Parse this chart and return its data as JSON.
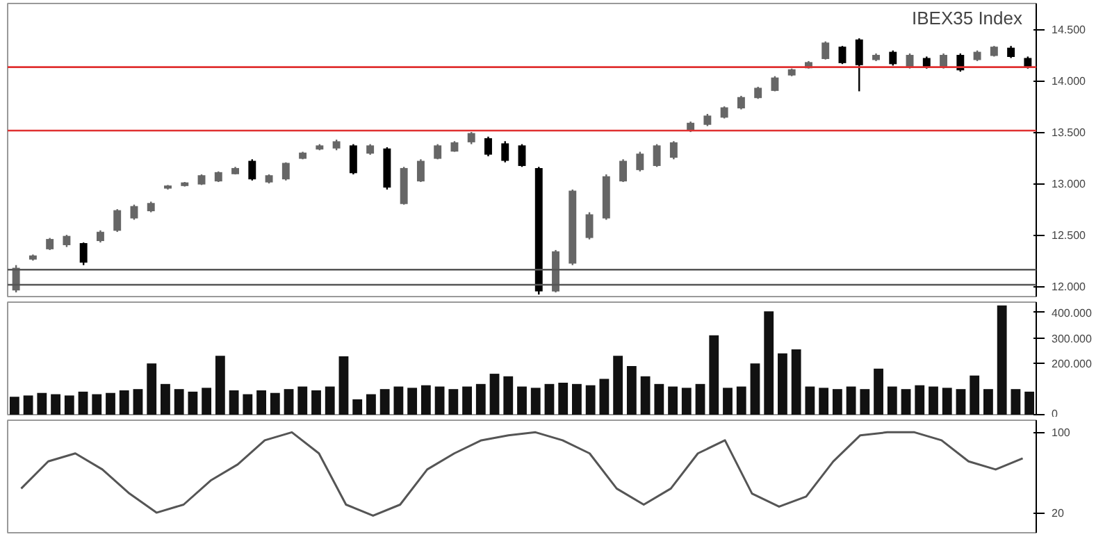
{
  "chart_data": [
    {
      "type": "candlestick",
      "title": "IBEX35 Index",
      "colors": [
        "#666666",
        "#666666",
        "#666666",
        "#666666",
        "#000000",
        "#666666",
        "#666666",
        "#666666",
        "#666666",
        "#666666",
        "#666666",
        "#666666",
        "#666666",
        "#666666",
        "#000000",
        "#666666",
        "#666666",
        "#666666",
        "#666666",
        "#666666",
        "#000000",
        "#666666",
        "#000000",
        "#666666",
        "#666666",
        "#666666",
        "#666666",
        "#666666",
        "#000000",
        "#000000",
        "#000000",
        "#000000",
        "#666666",
        "#666666",
        "#666666",
        "#666666",
        "#666666",
        "#666666",
        "#666666",
        "#666666",
        "#666666",
        "#666666",
        "#666666",
        "#666666",
        "#666666",
        "#666666",
        "#666666",
        "#666666",
        "#666666",
        "#000000",
        "#000000",
        "#666666",
        "#000000",
        "#666666",
        "#000000",
        "#666666",
        "#000000",
        "#666666",
        "#666666",
        "#000000",
        "#000000"
      ],
      "categories": [
        null,
        null,
        null,
        null,
        null,
        null,
        null,
        null,
        null,
        null,
        null,
        null,
        null,
        null,
        null,
        null,
        null,
        null,
        null,
        null,
        null,
        null,
        null,
        null,
        null,
        null,
        null,
        null,
        null,
        null,
        null,
        null,
        null,
        null,
        null,
        null,
        null,
        null,
        null,
        null,
        null,
        null,
        null,
        null,
        null,
        null,
        null,
        null,
        null,
        null,
        null,
        null,
        null,
        null,
        null,
        null,
        null,
        null,
        null,
        null,
        null
      ],
      "ohlc": [
        [
          11960,
          12206,
          11941,
          12180
        ],
        [
          12260,
          12309,
          12250,
          12300
        ],
        [
          12360,
          12470,
          12353,
          12460
        ],
        [
          12400,
          12500,
          12382,
          12490
        ],
        [
          12420,
          12426,
          12206,
          12230
        ],
        [
          12440,
          12544,
          12426,
          12530
        ],
        [
          12540,
          12750,
          12529,
          12740
        ],
        [
          12660,
          12794,
          12647,
          12780
        ],
        [
          12730,
          12823,
          12720,
          12810
        ],
        [
          12950,
          12985,
          12941,
          12980
        ],
        [
          12975,
          13014,
          12970,
          13010
        ],
        [
          12990,
          13088,
          12985,
          13080
        ],
        [
          13020,
          13117,
          13014,
          13110
        ],
        [
          13090,
          13161,
          13088,
          13150
        ],
        [
          13220,
          13235,
          13029,
          13040
        ],
        [
          13010,
          13088,
          13000,
          13080
        ],
        [
          13040,
          13205,
          13029,
          13200
        ],
        [
          13240,
          13308,
          13235,
          13300
        ],
        [
          13330,
          13382,
          13323,
          13370
        ],
        [
          13340,
          13426,
          13323,
          13410
        ],
        [
          13370,
          13382,
          13088,
          13100
        ],
        [
          13290,
          13382,
          13279,
          13370
        ],
        [
          13340,
          13352,
          12941,
          12960
        ],
        [
          12800,
          13161,
          12794,
          13150
        ],
        [
          13020,
          13235,
          13014,
          13220
        ],
        [
          13240,
          13382,
          13235,
          13370
        ],
        [
          13310,
          13411,
          13308,
          13400
        ],
        [
          13400,
          13500,
          13382,
          13490
        ],
        [
          13440,
          13455,
          13264,
          13280
        ],
        [
          13390,
          13411,
          13205,
          13220
        ],
        [
          13370,
          13382,
          13161,
          13170
        ],
        [
          13150,
          13161,
          11920,
          11950
        ],
        [
          11950,
          12353,
          11941,
          12340
        ],
        [
          12220,
          12941,
          12206,
          12930
        ],
        [
          12470,
          12720,
          12456,
          12700
        ],
        [
          12660,
          13088,
          12647,
          13070
        ],
        [
          13020,
          13235,
          13014,
          13220
        ],
        [
          13130,
          13308,
          13117,
          13290
        ],
        [
          13170,
          13382,
          13161,
          13370
        ],
        [
          13250,
          13411,
          13235,
          13400
        ],
        [
          13510,
          13602,
          13500,
          13590
        ],
        [
          13570,
          13676,
          13558,
          13660
        ],
        [
          13640,
          13749,
          13632,
          13740
        ],
        [
          13730,
          13852,
          13720,
          13840
        ],
        [
          13830,
          13940,
          13823,
          13930
        ],
        [
          13900,
          14043,
          13896,
          14030
        ],
        [
          14050,
          14117,
          14043,
          14110
        ],
        [
          14120,
          14190,
          14117,
          14180
        ],
        [
          14210,
          14381,
          14205,
          14370
        ],
        [
          14330,
          14337,
          14161,
          14170
        ],
        [
          14400,
          14411,
          13896,
          14150
        ],
        [
          14200,
          14264,
          14190,
          14250
        ],
        [
          14280,
          14293,
          14146,
          14160
        ],
        [
          14130,
          14264,
          14117,
          14250
        ],
        [
          14220,
          14234,
          14117,
          14130
        ],
        [
          14130,
          14264,
          14117,
          14250
        ],
        [
          14250,
          14264,
          14087,
          14100
        ],
        [
          14200,
          14293,
          14190,
          14280
        ],
        [
          14240,
          14337,
          14234,
          14330
        ],
        [
          14320,
          14337,
          14220,
          14230
        ],
        [
          14220,
          14234,
          14117,
          14134
        ]
      ],
      "ylim": [
        11900,
        14750
      ],
      "yticks": [
        {
          "value": 12000,
          "label": "12.000"
        },
        {
          "value": 12500,
          "label": "12.500"
        },
        {
          "value": 13000,
          "label": "13.000"
        },
        {
          "value": 13500,
          "label": "13.500"
        },
        {
          "value": 14000,
          "label": "14.000"
        },
        {
          "value": 14500,
          "label": "14.500"
        }
      ],
      "tick_labels": "y",
      "grid": false,
      "ref_lines": [
        {
          "axis": "y",
          "value": 14131,
          "color": "#e03030"
        },
        {
          "axis": "y",
          "value": 13514,
          "color": "#e03030"
        },
        {
          "axis": "y",
          "value": 12162,
          "color": "#555555"
        },
        {
          "axis": "y",
          "value": 12015,
          "color": "#555555"
        }
      ]
    },
    {
      "type": "bar",
      "color": "#111111",
      "tick_labels": "y",
      "grid": false,
      "categories": [
        null,
        null,
        null,
        null,
        null,
        null,
        null,
        null,
        null,
        null,
        null,
        null,
        null,
        null,
        null,
        null,
        null,
        null,
        null,
        null,
        null,
        null,
        null,
        null,
        null,
        null,
        null,
        null,
        null,
        null,
        null,
        null,
        null,
        null,
        null,
        null,
        null,
        null,
        null,
        null,
        null,
        null,
        null,
        null,
        null,
        null,
        null,
        null,
        null,
        null,
        null,
        null,
        null,
        null,
        null,
        null,
        null,
        null,
        null,
        null,
        null,
        null,
        null,
        null,
        null,
        null,
        null,
        null,
        null,
        null,
        null,
        null,
        null,
        null,
        null
      ],
      "values": [
        70000,
        75000,
        85000,
        80000,
        75000,
        90000,
        80000,
        85000,
        95000,
        100000,
        200000,
        120000,
        100000,
        90000,
        105000,
        230000,
        95000,
        80000,
        95000,
        85000,
        100000,
        110000,
        95000,
        110000,
        228000,
        60000,
        80000,
        100000,
        110000,
        105000,
        115000,
        110000,
        100000,
        110000,
        120000,
        160000,
        150000,
        110000,
        105000,
        120000,
        125000,
        120000,
        115000,
        140000,
        230000,
        190000,
        150000,
        120000,
        110000,
        105000,
        120000,
        310000,
        105000,
        110000,
        200000,
        404000,
        240000,
        255000,
        110000,
        105000,
        100000,
        110000,
        100000,
        180000,
        110000,
        100000,
        115000,
        110000,
        105000,
        100000,
        153000,
        100000,
        427000,
        100000,
        90000
      ],
      "ylim": [
        0,
        440000
      ],
      "yticks": [
        {
          "value": 0,
          "label": "0"
        },
        {
          "value": 200000,
          "label": "200.000"
        },
        {
          "value": 300000,
          "label": "300.000"
        },
        {
          "value": 400000,
          "label": "400.000"
        }
      ]
    },
    {
      "type": "line",
      "color": "#555555",
      "tick_labels": "y",
      "grid": false,
      "categories": [
        null,
        null,
        null,
        null,
        null,
        null,
        null,
        null,
        null,
        null,
        null,
        null,
        null,
        null,
        null,
        null,
        null,
        null,
        null,
        null,
        null,
        null,
        null,
        null,
        null,
        null,
        null,
        null,
        null,
        null,
        null,
        null,
        null,
        null,
        null,
        null,
        null,
        null
      ],
      "values": [
        44,
        71,
        79,
        63,
        39,
        20,
        28,
        52,
        68,
        92,
        100,
        79,
        28,
        17,
        28,
        63,
        79,
        92,
        97,
        100,
        92,
        79,
        44,
        28,
        44,
        79,
        92,
        39,
        26,
        36,
        71,
        97,
        100,
        100,
        92,
        71,
        63,
        74
      ],
      "ylim": [
        0,
        112
      ],
      "yticks": [
        20,
        100
      ]
    }
  ]
}
